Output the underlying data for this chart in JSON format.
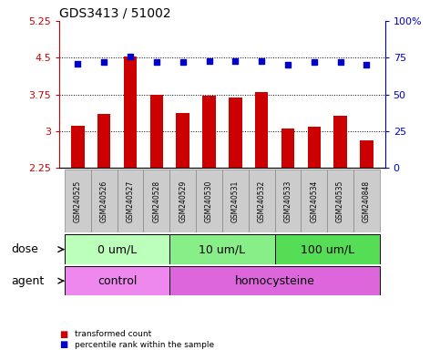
{
  "title": "GDS3413 / 51002",
  "samples": [
    "GSM240525",
    "GSM240526",
    "GSM240527",
    "GSM240528",
    "GSM240529",
    "GSM240530",
    "GSM240531",
    "GSM240532",
    "GSM240533",
    "GSM240534",
    "GSM240535",
    "GSM240848"
  ],
  "transformed_count": [
    3.12,
    3.35,
    4.52,
    3.75,
    3.38,
    3.72,
    3.68,
    3.8,
    3.05,
    3.1,
    3.32,
    2.82
  ],
  "percentile_rank": [
    71,
    72,
    76,
    72,
    72,
    73,
    73,
    73,
    70,
    72,
    72,
    70
  ],
  "ylim_left": [
    2.25,
    5.25
  ],
  "ylim_right": [
    0,
    100
  ],
  "yticks_left": [
    2.25,
    3.0,
    3.75,
    4.5,
    5.25
  ],
  "yticks_right": [
    0,
    25,
    50,
    75,
    100
  ],
  "ytick_labels_left": [
    "2.25",
    "3",
    "3.75",
    "4.5",
    "5.25"
  ],
  "ytick_labels_right": [
    "0",
    "25",
    "50",
    "75",
    "100%"
  ],
  "hlines": [
    3.0,
    3.75,
    4.5
  ],
  "bar_color": "#cc0000",
  "dot_color": "#0000cc",
  "dose_groups": [
    {
      "label": "0 um/L",
      "start": 0,
      "end": 4,
      "color": "#bbffbb"
    },
    {
      "label": "10 um/L",
      "start": 4,
      "end": 8,
      "color": "#88ee88"
    },
    {
      "label": "100 um/L",
      "start": 8,
      "end": 12,
      "color": "#55dd55"
    }
  ],
  "agent_groups": [
    {
      "label": "control",
      "start": 0,
      "end": 4,
      "color": "#ee88ee"
    },
    {
      "label": "homocysteine",
      "start": 4,
      "end": 12,
      "color": "#dd66dd"
    }
  ],
  "dose_label": "dose",
  "agent_label": "agent",
  "legend_bar_label": "transformed count",
  "legend_dot_label": "percentile rank within the sample",
  "title_fontsize": 10,
  "tick_fontsize": 8,
  "label_fontsize": 9,
  "bar_width": 0.5,
  "plot_bg_color": "#ffffff",
  "sample_label_bg": "#cccccc",
  "sample_label_border": "#888888"
}
